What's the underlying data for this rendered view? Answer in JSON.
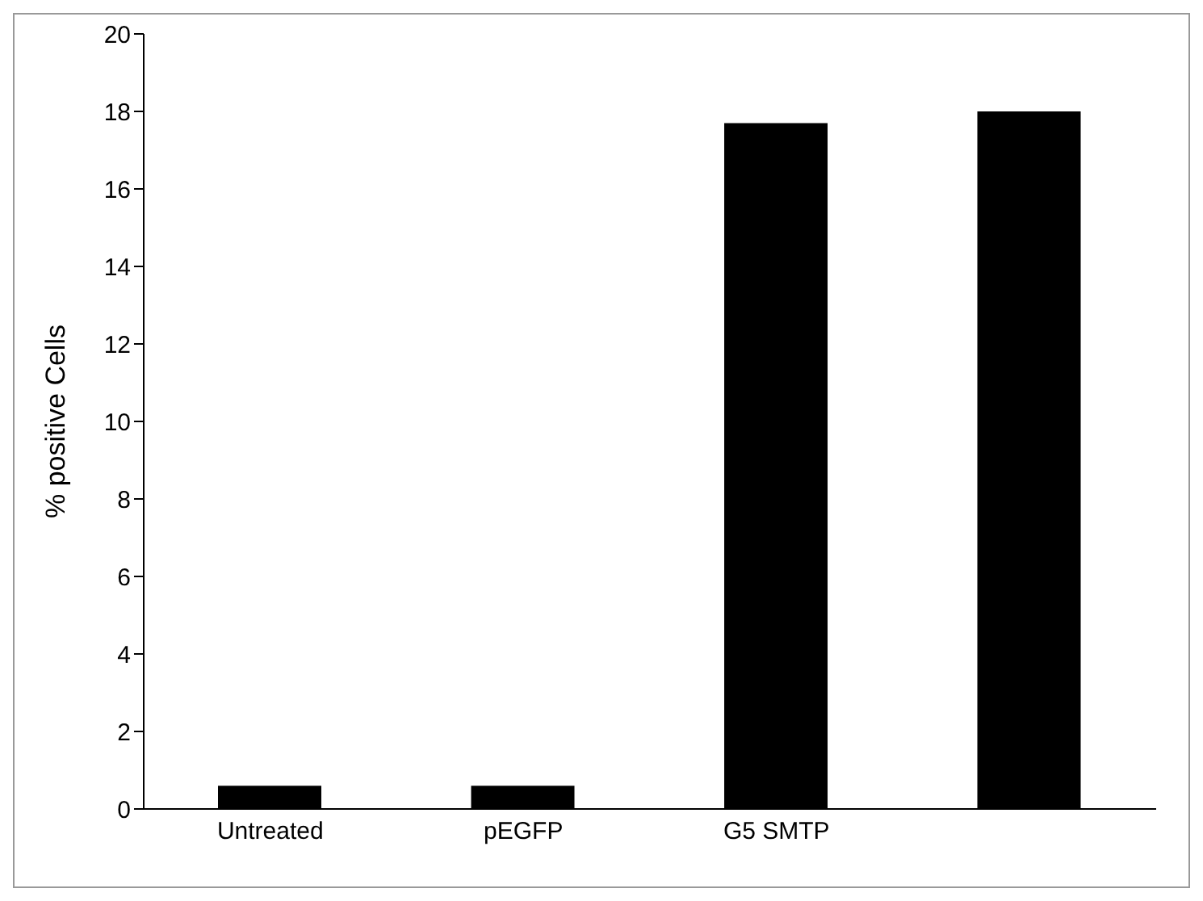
{
  "chart_data": {
    "type": "bar",
    "ylabel": "% positive Cells",
    "categories": [
      "Untreated",
      "pEGFP",
      "G5 SMTP",
      null
    ],
    "values": [
      0.6,
      0.6,
      17.7,
      18.0
    ],
    "color": "#000000",
    "ylim": [
      0,
      20
    ],
    "yticks": [
      0,
      2,
      4,
      6,
      8,
      10,
      12,
      14,
      16,
      18,
      20
    ],
    "grid": false,
    "legend": false
  }
}
